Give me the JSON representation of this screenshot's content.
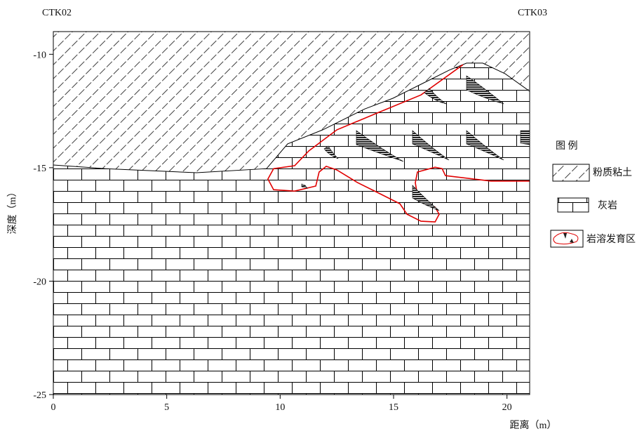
{
  "chart_data": {
    "type": "section",
    "left_label": "CTK02",
    "right_label": "CTK03",
    "x_label": "距离（m）",
    "y_label": "深度（m）",
    "xlim": [
      0,
      21
    ],
    "ylim": [
      -25,
      -9
    ],
    "xticks": [
      0,
      5,
      10,
      15,
      20
    ],
    "yticks": [
      -25,
      -20,
      -15,
      -10
    ],
    "boundary": {
      "color": "#000000",
      "x": [
        0,
        2.29,
        6.31,
        9.4,
        10.33,
        11.88,
        13.73,
        14.97,
        16.21,
        17.45,
        18.22,
        18.93,
        19.92,
        21.0
      ],
      "y": [
        -14.88,
        -15.04,
        -15.22,
        -15.04,
        -13.95,
        -13.33,
        -12.41,
        -11.94,
        -11.32,
        -10.7,
        -10.39,
        -10.39,
        -10.86,
        -11.63
      ]
    },
    "karst_zone": {
      "color": "#e00000",
      "x": [
        18.06,
        16.21,
        14.35,
        12.5,
        11.26,
        10.64,
        9.71,
        9.46,
        9.71,
        10.64,
        11.57,
        11.72,
        12.03,
        12.5,
        13.42,
        14.35,
        15.28,
        15.59,
        16.21,
        16.83,
        17.01,
        16.83,
        16.36,
        16.05,
        15.96,
        16.05,
        16.83,
        17.14,
        17.29,
        19.3,
        21.0
      ],
      "y": [
        -10.46,
        -11.79,
        -12.56,
        -13.33,
        -14.26,
        -14.91,
        -15.04,
        -15.5,
        -15.97,
        -16.03,
        -15.81,
        -15.19,
        -14.94,
        -15.1,
        -15.66,
        -16.12,
        -16.59,
        -17.05,
        -17.36,
        -17.39,
        -17.05,
        -16.74,
        -16.59,
        -16.21,
        -15.66,
        -15.19,
        -14.98,
        -15.04,
        -15.35,
        -15.59,
        -15.59
      ]
    },
    "legend": {
      "title": "图 例",
      "items": [
        "粉质粘土",
        "灰岩",
        "岩溶发育区"
      ]
    }
  }
}
